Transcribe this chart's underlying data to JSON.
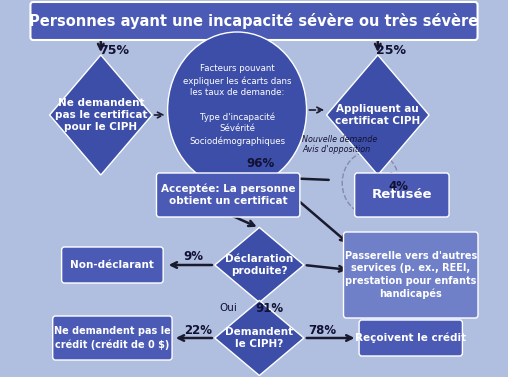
{
  "title": "Personnes ayant une incapacité sévère ou très sévère",
  "title_bg": "#4b5bb5",
  "bg_color": "#b0bfe0",
  "diamond_color": "#3d4ea8",
  "rect_color": "#4b5bb5",
  "rect_color_light": "#7080c8",
  "circle_color": "#3d4ea8",
  "text_color": "white",
  "dark_text": "#111133",
  "arrow_color": "#1a1a2e",
  "pct_75": "75%",
  "pct_25": "25%",
  "pct_96": "96%",
  "pct_4": "4%",
  "pct_9": "9%",
  "pct_91": "91%",
  "pct_oui": "Oui",
  "pct_22": "22%",
  "pct_78": "78%",
  "label_nouvelle": "Nouvelle demande\nAvis d'opposition",
  "label_left_diamond": "Ne demandent\npas le certificat\npour le CIPH",
  "label_right_diamond": "Appliquent au\ncertificat CIPH",
  "label_circle": "Facteurs pouvant\nexpliquer les écarts dans\nles taux de demande:\n\nType d'incapacité\nSévérité\nSociodémographiques",
  "label_accepted": "Acceptée: La personne\nobtient un certificat",
  "label_refused": "Refusée",
  "label_decl": "Déclaration\nproduite?",
  "label_nondecl": "Non-déclarant",
  "label_gateway": "Passerelle vers d'autres\nservices (p. ex., REEI,\nprestation pour enfants\nhandicapés",
  "label_ciph": "Demandent\nle CIPH?",
  "label_nocredit": "Ne demandent pas le\ncrédit (crédit de 0 $)",
  "label_credit": "Reçoivent le crédit"
}
